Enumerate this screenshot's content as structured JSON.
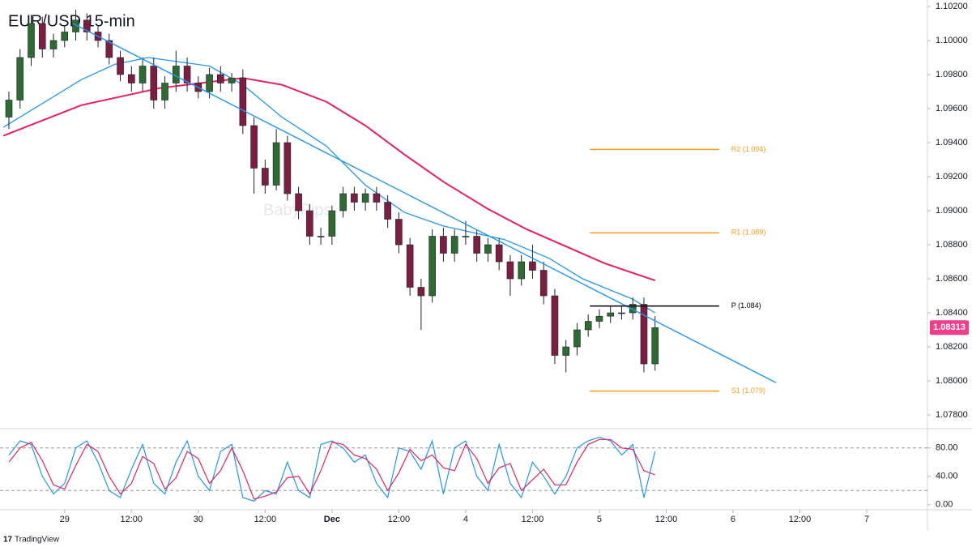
{
  "chart_data": [
    {
      "type": "candlestick",
      "title": "EUR/USD 15-min",
      "watermark": "BabyPips",
      "footer": "TradingView",
      "x": [
        -10,
        -8,
        -6,
        -4,
        -2,
        0,
        2,
        4,
        6,
        8,
        10,
        12,
        14,
        16,
        18,
        20,
        22,
        24,
        26,
        28,
        30,
        32,
        34,
        36,
        38,
        40,
        42,
        44,
        46,
        48,
        50,
        52,
        54,
        56,
        58,
        60,
        62,
        64,
        66,
        68,
        70,
        72,
        74,
        76,
        78,
        80,
        82,
        84,
        86,
        88,
        90,
        92,
        94,
        96,
        98,
        100,
        102,
        104,
        106
      ],
      "open": [
        1.0955,
        1.0965,
        1.099,
        1.101,
        1.0995,
        1.1,
        1.1005,
        1.1012,
        1.1005,
        1.1,
        1.099,
        1.098,
        1.0975,
        1.0985,
        1.0965,
        1.0975,
        1.0985,
        1.0975,
        1.097,
        1.098,
        1.0975,
        1.0978,
        1.095,
        1.0925,
        1.0915,
        1.094,
        1.091,
        1.09,
        1.0885,
        1.0885,
        1.09,
        1.091,
        1.0905,
        1.091,
        1.0905,
        1.0895,
        1.088,
        1.0855,
        1.085,
        1.0885,
        1.0875,
        1.0885,
        1.0885,
        1.0875,
        1.088,
        1.087,
        1.086,
        1.087,
        1.0865,
        1.085,
        1.0815,
        1.082,
        1.083,
        1.0835,
        1.0838,
        1.084,
        1.084,
        1.0845,
        1.081
      ],
      "high": [
        1.097,
        1.0995,
        1.1015,
        1.1014,
        1.1004,
        1.1009,
        1.1018,
        1.1016,
        1.1009,
        1.1004,
        1.0994,
        1.0985,
        1.099,
        1.099,
        1.0979,
        1.0994,
        1.099,
        1.0979,
        1.0984,
        1.0985,
        1.0981,
        1.0983,
        1.0955,
        1.093,
        1.0948,
        1.0944,
        1.0914,
        1.0904,
        1.089,
        1.0903,
        1.0914,
        1.0914,
        1.0913,
        1.0914,
        1.0909,
        1.0899,
        1.0884,
        1.086,
        1.0889,
        1.089,
        1.0889,
        1.0894,
        1.0889,
        1.0884,
        1.0884,
        1.0874,
        1.0874,
        1.088,
        1.087,
        1.0854,
        1.0824,
        1.0834,
        1.0839,
        1.0842,
        1.0844,
        1.0844,
        1.0849,
        1.0849,
        1.0838
      ],
      "low": [
        1.0948,
        1.096,
        1.0985,
        1.099,
        1.099,
        1.0996,
        1.1,
        1.1,
        1.0996,
        1.0986,
        1.0976,
        1.097,
        1.097,
        1.096,
        1.096,
        1.097,
        1.097,
        1.0966,
        1.0966,
        1.097,
        1.097,
        1.0945,
        1.091,
        1.091,
        1.0912,
        1.0906,
        1.0895,
        1.088,
        1.088,
        1.088,
        1.0896,
        1.09,
        1.09,
        1.09,
        1.089,
        1.0875,
        1.085,
        1.083,
        1.0846,
        1.087,
        1.087,
        1.088,
        1.087,
        1.087,
        1.0865,
        1.085,
        1.0856,
        1.086,
        1.0845,
        1.081,
        1.0805,
        1.0815,
        1.0826,
        1.0831,
        1.0834,
        1.0836,
        1.0836,
        1.0805,
        1.0806
      ],
      "close": [
        1.0965,
        1.099,
        1.101,
        1.0995,
        1.1,
        1.1005,
        1.1012,
        1.1005,
        1.1,
        1.099,
        1.098,
        1.0975,
        1.0985,
        1.0965,
        1.0975,
        1.0985,
        1.0975,
        1.097,
        1.098,
        1.0975,
        1.0978,
        1.095,
        1.0925,
        1.0915,
        1.094,
        1.091,
        1.09,
        1.0885,
        1.0885,
        1.09,
        1.091,
        1.0905,
        1.091,
        1.0905,
        1.0895,
        1.088,
        1.0855,
        1.085,
        1.0885,
        1.0875,
        1.0885,
        1.0885,
        1.0875,
        1.088,
        1.087,
        1.086,
        1.087,
        1.0865,
        1.085,
        1.0815,
        1.082,
        1.083,
        1.0835,
        1.0838,
        1.084,
        1.084,
        1.0845,
        1.081,
        1.08313
      ],
      "up_color": "#2e6b30",
      "down_color": "#7d1d3f",
      "moving_averages": [
        {
          "color": "#2196f3",
          "x": [
            -11,
            -3,
            3,
            9,
            15,
            26,
            32,
            39,
            47,
            54,
            61,
            68,
            79,
            87,
            93,
            102,
            106
          ],
          "values": [
            1.0949,
            1.0965,
            1.0977,
            1.0986,
            1.099,
            1.0985,
            1.0974,
            1.0955,
            1.0938,
            1.0915,
            1.0899,
            1.0891,
            1.0883,
            1.0872,
            1.086,
            1.0848,
            1.084
          ]
        },
        {
          "color": "#e91e63",
          "x": [
            -11,
            3,
            17,
            32,
            39,
            47,
            54,
            61,
            68,
            76,
            83,
            90,
            97,
            106
          ],
          "values": [
            1.0944,
            1.0962,
            1.0972,
            1.0978,
            1.0974,
            1.0964,
            1.095,
            1.0933,
            1.0917,
            1.0901,
            1.0889,
            1.0879,
            1.0869,
            1.0859
          ]
        }
      ],
      "trendline": {
        "color": "#2196f3",
        "x": [
          1.5,
          127.7
        ],
        "values": [
          1.101,
          1.0799
        ]
      },
      "pivot_levels": {
        "x": [
          94.3,
          117.5
        ],
        "levels": [
          {
            "name": "R2 (1.094)",
            "value": 1.0936,
            "color": "#f59c1a"
          },
          {
            "name": "R1 (1.089)",
            "value": 1.0887,
            "color": "#f59c1a"
          },
          {
            "name": "P (1.084)",
            "value": 1.0844,
            "color": "#000000"
          },
          {
            "name": "S1 (1.079)",
            "value": 1.0794,
            "color": "#f59c1a"
          }
        ]
      },
      "last_price": 1.08313,
      "last_price_color": "#f23d8a",
      "xlim": [
        -11.6,
        154.9
      ],
      "xticks": [
        {
          "value": 0,
          "label": "29"
        },
        {
          "value": 12,
          "label": "12:00"
        },
        {
          "value": 24,
          "label": "30"
        },
        {
          "value": 36,
          "label": "12:00"
        },
        {
          "value": 48,
          "label": "Dec"
        },
        {
          "value": 60,
          "label": "12:00"
        },
        {
          "value": 72,
          "label": "4"
        },
        {
          "value": 84,
          "label": "12:00"
        },
        {
          "value": 96,
          "label": "5"
        },
        {
          "value": 108,
          "label": "12:00"
        },
        {
          "value": 120,
          "label": "6"
        },
        {
          "value": 132,
          "label": "12:00"
        },
        {
          "value": 144,
          "label": "7"
        }
      ],
      "ylim": [
        1.07724,
        1.10238
      ],
      "yticks": [
        {
          "value": 1.078,
          "label": "1.07800"
        },
        {
          "value": 1.08,
          "label": "1.08000"
        },
        {
          "value": 1.082,
          "label": "1.08200"
        },
        {
          "value": 1.084,
          "label": "1.08400"
        },
        {
          "value": 1.086,
          "label": "1.08600"
        },
        {
          "value": 1.088,
          "label": "1.08800"
        },
        {
          "value": 1.09,
          "label": "1.09000"
        },
        {
          "value": 1.092,
          "label": "1.09200"
        },
        {
          "value": 1.094,
          "label": "1.09400"
        },
        {
          "value": 1.096,
          "label": "1.09600"
        },
        {
          "value": 1.098,
          "label": "1.09800"
        },
        {
          "value": 1.1,
          "label": "1.10000"
        },
        {
          "value": 1.102,
          "label": "1.10200"
        }
      ],
      "grid": false
    },
    {
      "type": "line",
      "x": [
        -10,
        -8,
        -6,
        -4,
        -2,
        0,
        2,
        4,
        6,
        8,
        10,
        12,
        14,
        16,
        18,
        20,
        22,
        24,
        26,
        28,
        30,
        32,
        34,
        36,
        38,
        40,
        42,
        44,
        46,
        48,
        50,
        52,
        54,
        56,
        58,
        60,
        62,
        64,
        66,
        68,
        70,
        72,
        74,
        76,
        78,
        80,
        82,
        84,
        86,
        88,
        90,
        92,
        94,
        96,
        98,
        100,
        102,
        104,
        106
      ],
      "series": [
        {
          "color": "#2196f3",
          "values": [
            70,
            90,
            85,
            40,
            15,
            30,
            80,
            90,
            60,
            20,
            10,
            50,
            85,
            30,
            15,
            60,
            90,
            40,
            20,
            75,
            85,
            10,
            5,
            20,
            15,
            60,
            20,
            10,
            85,
            90,
            80,
            60,
            70,
            30,
            10,
            80,
            75,
            50,
            90,
            15,
            80,
            90,
            40,
            20,
            85,
            30,
            10,
            60,
            40,
            15,
            40,
            80,
            90,
            95,
            90,
            70,
            85,
            10,
            75
          ]
        },
        {
          "color": "#e0245e",
          "values": [
            60,
            80,
            88,
            62,
            28,
            22,
            55,
            85,
            75,
            40,
            15,
            30,
            68,
            58,
            22,
            38,
            75,
            65,
            30,
            48,
            80,
            48,
            8,
            12,
            18,
            38,
            40,
            15,
            48,
            88,
            85,
            70,
            65,
            50,
            20,
            45,
            78,
            62,
            70,
            52,
            48,
            85,
            65,
            30,
            52,
            58,
            20,
            35,
            50,
            28,
            28,
            60,
            85,
            92,
            92,
            80,
            78,
            48,
            42
          ]
        }
      ],
      "bands": [
        20,
        80
      ],
      "xlim": [
        -11.6,
        154.9
      ],
      "ylim": [
        -6,
        106
      ],
      "yticks": [
        {
          "value": 0,
          "label": "0.00"
        },
        {
          "value": 40,
          "label": "40.00"
        },
        {
          "value": 80,
          "label": "80.00"
        }
      ]
    }
  ]
}
